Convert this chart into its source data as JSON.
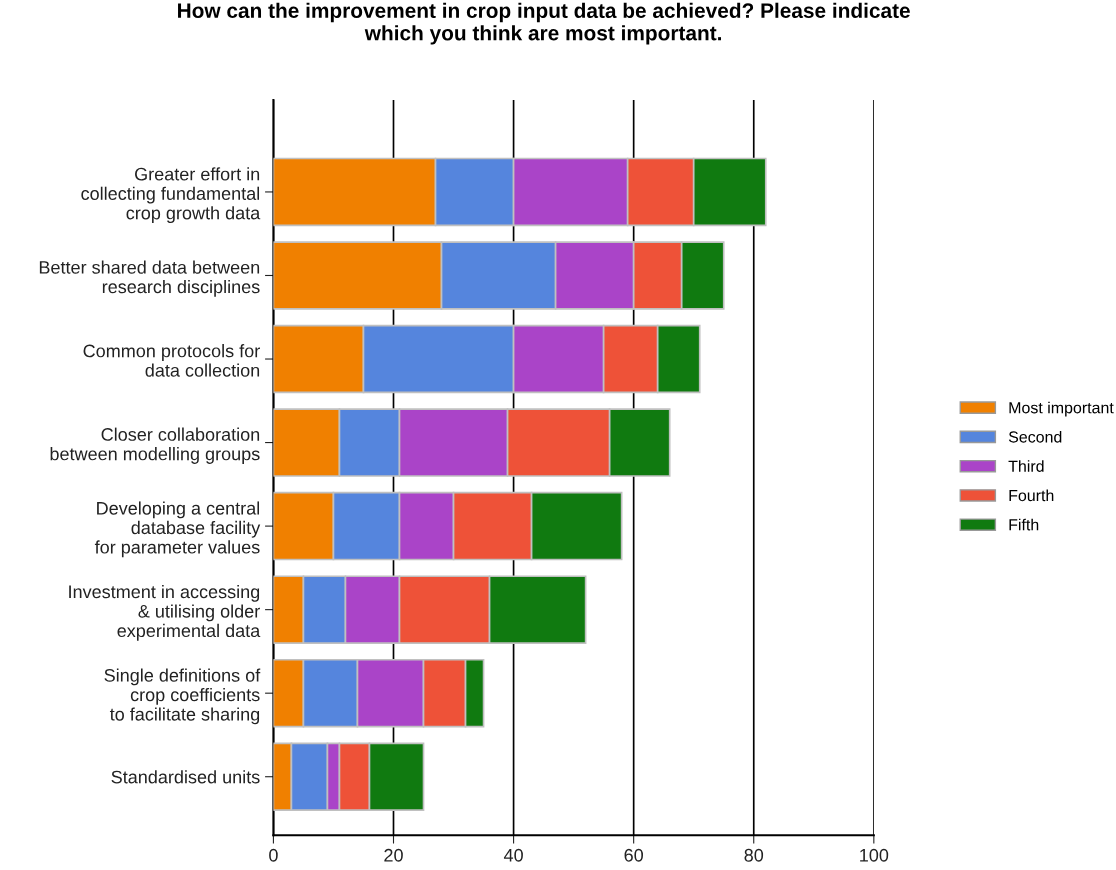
{
  "chart_data": {
    "type": "bar",
    "title": "How can the improvement in crop input data be achieved? Please indicate\nwhich you think are most important.",
    "orientation": "horizontal",
    "stacked": true,
    "categories": [
      "Greater effort in\ncollecting fundamental\ncrop growth data",
      "Better shared data between\nresearch disciplines",
      "Common protocols for\ndata collection",
      "Closer collaboration\nbetween modelling groups",
      "Developing a central\ndatabase facility\nfor parameter values",
      "Investment in accessing\n& utilising older\nexperimental data",
      "Single definitions of\ncrop coefficients\nto facilitate sharing",
      "Standardised units"
    ],
    "series": [
      {
        "name": "Most important",
        "color": "#f08000",
        "values": [
          27,
          28,
          15,
          11,
          10,
          5,
          5,
          3
        ]
      },
      {
        "name": "Second",
        "color": "#5585dd",
        "values": [
          13,
          19,
          25,
          10,
          11,
          7,
          9,
          6
        ]
      },
      {
        "name": "Third",
        "color": "#aa44c8",
        "values": [
          19,
          13,
          15,
          18,
          9,
          9,
          11,
          2
        ]
      },
      {
        "name": "Fourth",
        "color": "#ee5238",
        "values": [
          11,
          8,
          9,
          17,
          13,
          15,
          7,
          5
        ]
      },
      {
        "name": "Fifth",
        "color": "#107a10",
        "values": [
          12,
          7,
          7,
          10,
          15,
          16,
          3,
          9
        ]
      }
    ],
    "xlim": [
      0,
      100
    ],
    "xticks": [
      0,
      20,
      40,
      60,
      80,
      100
    ],
    "grid": "x",
    "legend": "right"
  }
}
